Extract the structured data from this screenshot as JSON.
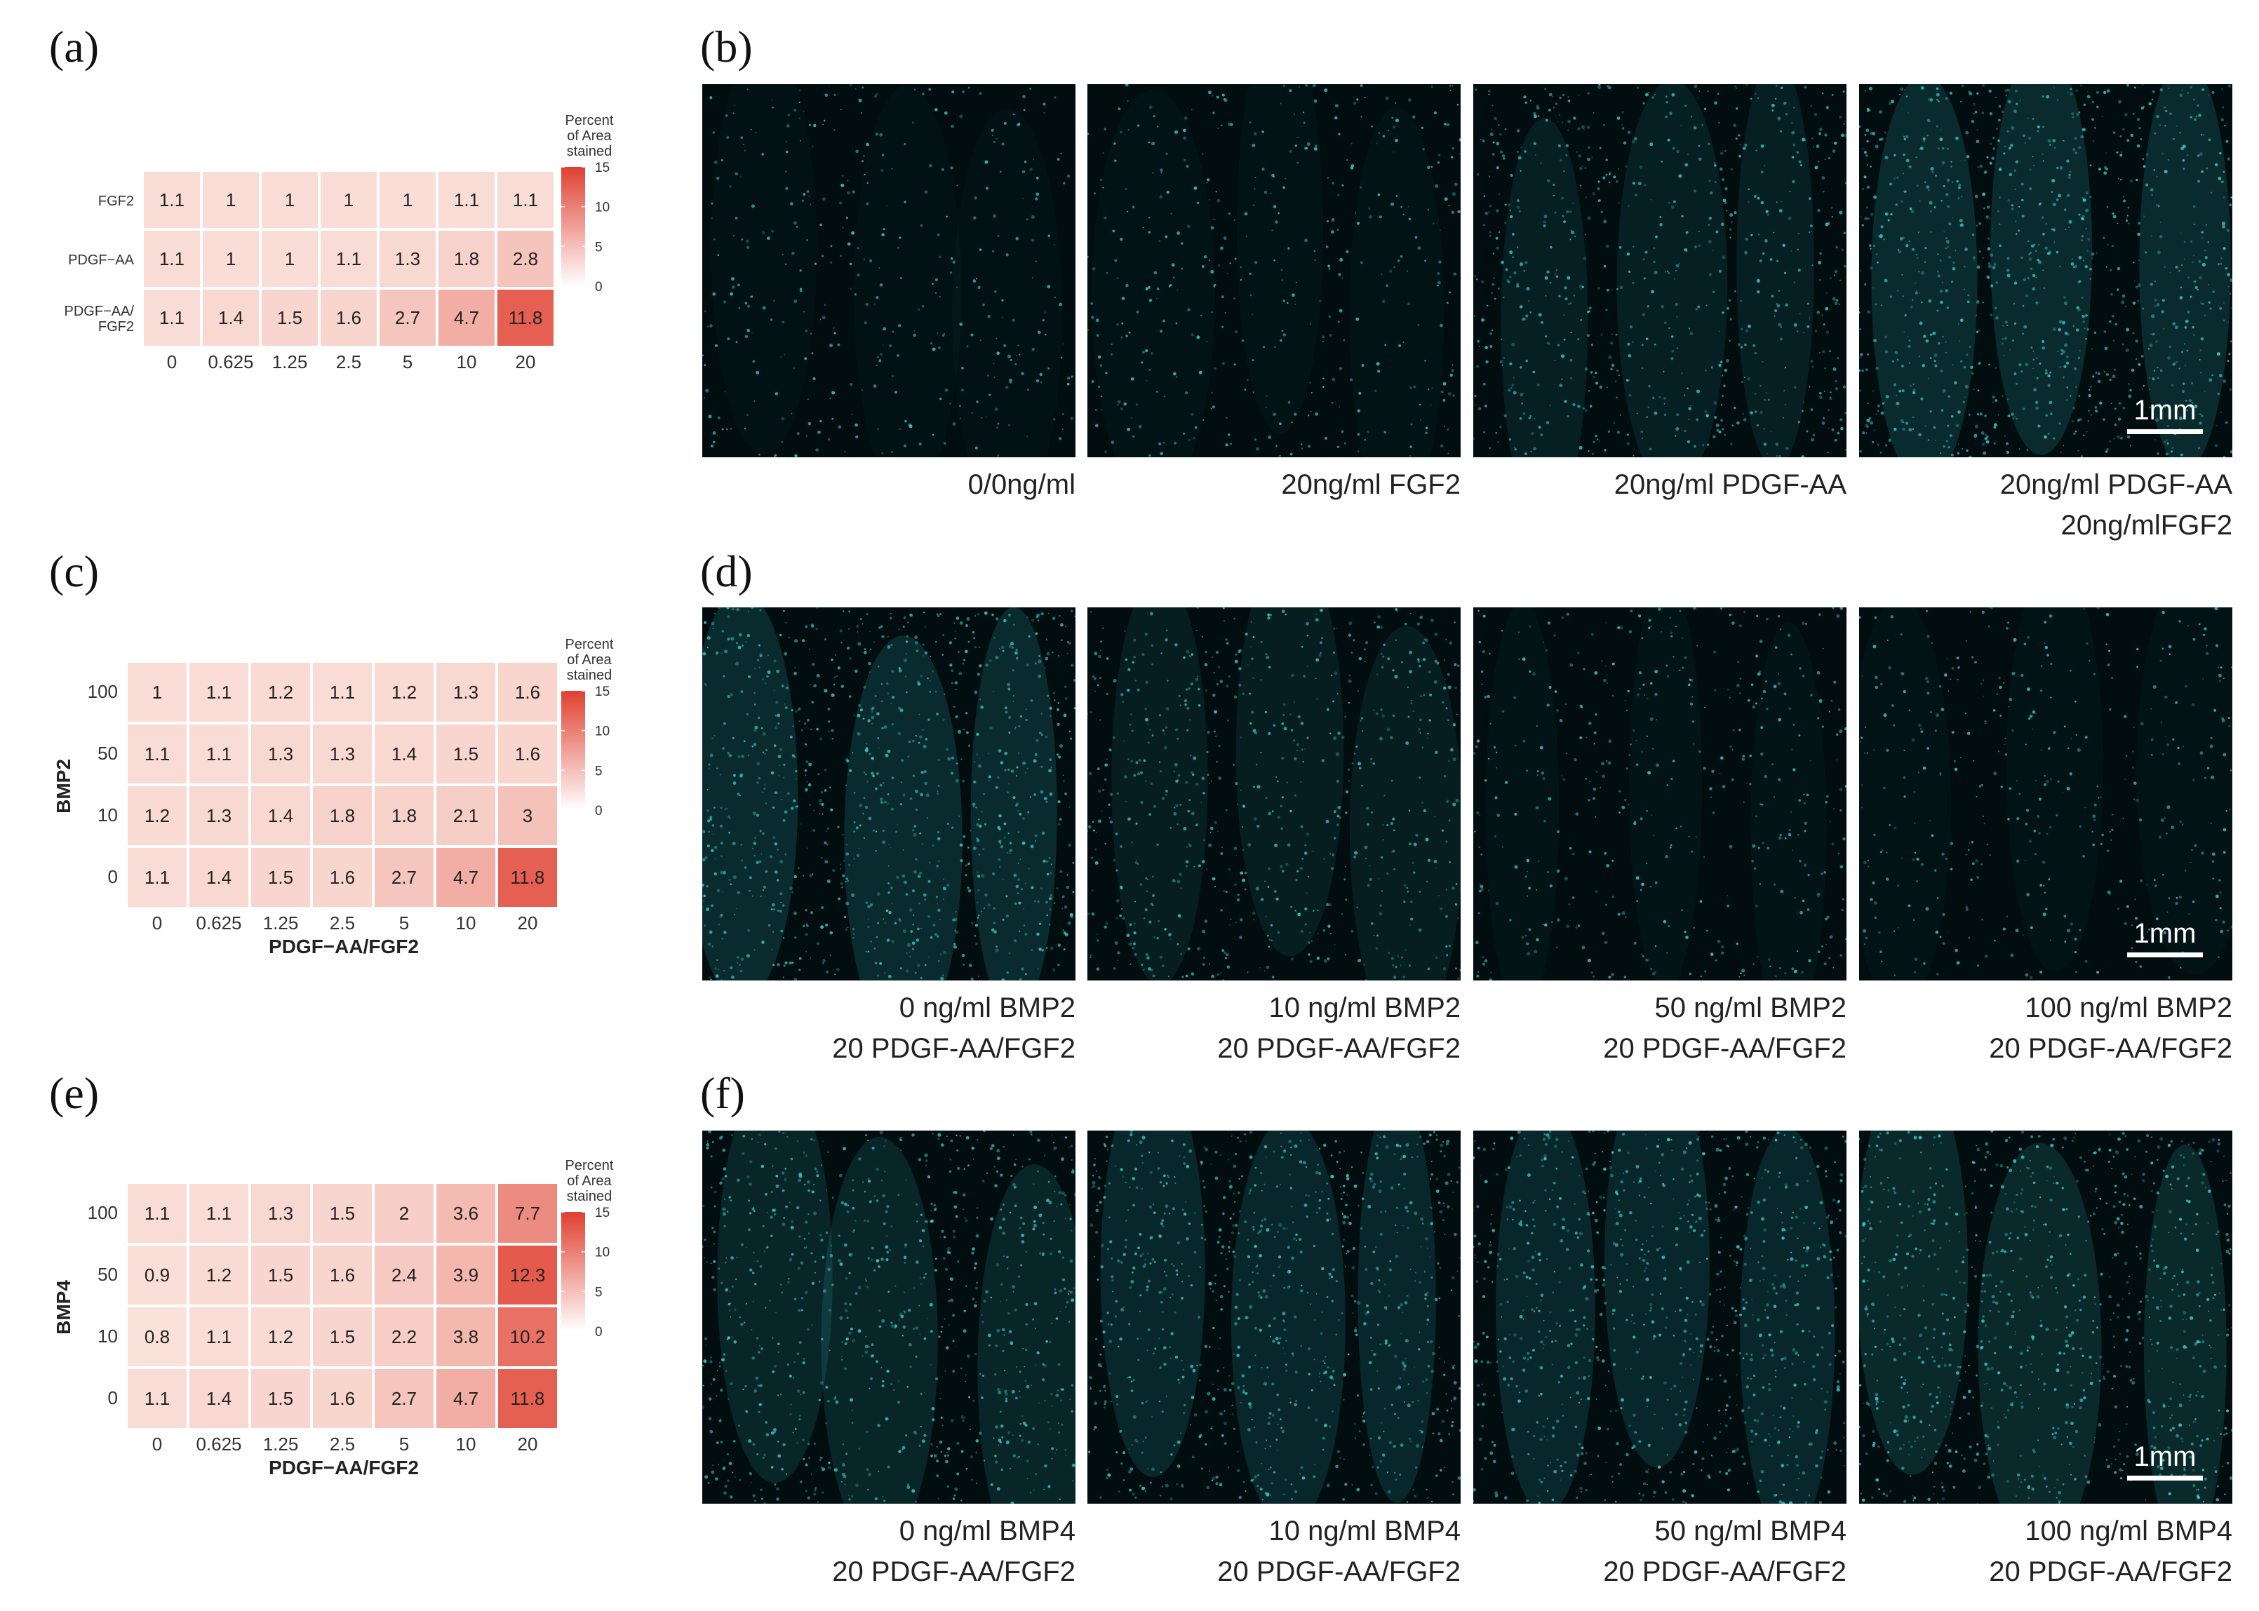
{
  "panels": [
    {
      "letter": "(a)"
    },
    {
      "letter": "(b)"
    },
    {
      "letter": "(c)"
    },
    {
      "letter": "(d)"
    },
    {
      "letter": "(e)"
    },
    {
      "letter": "(f)"
    }
  ],
  "chart_data": [
    {
      "type": "heatmap",
      "panel": "(a)",
      "title": "",
      "xlabel": "",
      "ylabel": "",
      "x": [
        "0",
        "0.625",
        "1.25",
        "2.5",
        "5",
        "10",
        "20"
      ],
      "y": [
        "FGF2",
        "PDGF−AA",
        "PDGF−AA/\nFGF2"
      ],
      "values": [
        [
          1.1,
          1,
          1,
          1,
          1,
          1.1,
          1.1
        ],
        [
          1.1,
          1,
          1,
          1.1,
          1.3,
          1.8,
          2.8
        ],
        [
          1.1,
          1.4,
          1.5,
          1.6,
          2.7,
          4.7,
          11.8
        ]
      ],
      "color_scale": {
        "title": "Percent\nof Area\nstained",
        "min": 0,
        "max": 15,
        "ticks": [
          "15",
          "10",
          "5",
          "0"
        ],
        "low_color": "#ffffff",
        "high_color": "#e04030"
      }
    },
    {
      "type": "heatmap",
      "panel": "(c)",
      "title": "",
      "xlabel": "PDGF−AA/FGF2",
      "ylabel": "BMP2",
      "x": [
        "0",
        "0.625",
        "1.25",
        "2.5",
        "5",
        "10",
        "20"
      ],
      "y": [
        "100",
        "50",
        "10",
        "0"
      ],
      "values": [
        [
          1,
          1.1,
          1.2,
          1.1,
          1.2,
          1.3,
          1.6
        ],
        [
          1.1,
          1.1,
          1.3,
          1.3,
          1.4,
          1.5,
          1.6
        ],
        [
          1.2,
          1.3,
          1.4,
          1.8,
          1.8,
          2.1,
          3
        ],
        [
          1.1,
          1.4,
          1.5,
          1.6,
          2.7,
          4.7,
          11.8
        ]
      ],
      "color_scale": {
        "title": "Percent\nof Area\nstained",
        "min": 0,
        "max": 15,
        "ticks": [
          "15",
          "10",
          "5",
          "0"
        ],
        "low_color": "#ffffff",
        "high_color": "#e04030"
      }
    },
    {
      "type": "heatmap",
      "panel": "(e)",
      "title": "",
      "xlabel": "PDGF−AA/FGF2",
      "ylabel": "BMP4",
      "x": [
        "0",
        "0.625",
        "1.25",
        "2.5",
        "5",
        "10",
        "20"
      ],
      "y": [
        "100",
        "50",
        "10",
        "0"
      ],
      "values": [
        [
          1.1,
          1.1,
          1.3,
          1.5,
          2,
          3.6,
          7.7
        ],
        [
          0.9,
          1.2,
          1.5,
          1.6,
          2.4,
          3.9,
          12.3
        ],
        [
          0.8,
          1.1,
          1.2,
          1.5,
          2.2,
          3.8,
          10.2
        ],
        [
          1.1,
          1.4,
          1.5,
          1.6,
          2.7,
          4.7,
          11.8
        ]
      ],
      "color_scale": {
        "title": "Percent\nof Area\nstained",
        "min": 0,
        "max": 15,
        "ticks": [
          "15",
          "10",
          "5",
          "0"
        ],
        "low_color": "#ffffff",
        "high_color": "#e04030"
      }
    }
  ],
  "micrographs": [
    {
      "panel": "(b)",
      "scale_bar": "1mm",
      "colors": {
        "background": "#010d0f",
        "stain": "#3fd0d8"
      },
      "images": [
        {
          "caption": [
            "0/0ng/ml"
          ],
          "intensity": 0.15
        },
        {
          "caption": [
            "20ng/ml FGF2"
          ],
          "intensity": 0.2
        },
        {
          "caption": [
            "20ng/ml PDGF-AA"
          ],
          "intensity": 0.55
        },
        {
          "caption": [
            "20ng/ml PDGF-AA",
            "20ng/mlFGF2"
          ],
          "intensity": 0.85
        }
      ]
    },
    {
      "panel": "(d)",
      "scale_bar": "1mm",
      "colors": {
        "background": "#010d0f",
        "stain": "#3fd0d8"
      },
      "images": [
        {
          "caption": [
            "0 ng/ml BMP2",
            "20 PDGF-AA/FGF2"
          ],
          "intensity": 0.85
        },
        {
          "caption": [
            "10 ng/ml BMP2",
            "20 PDGF-AA/FGF2"
          ],
          "intensity": 0.5
        },
        {
          "caption": [
            "50 ng/ml BMP2",
            "20 PDGF-AA/FGF2"
          ],
          "intensity": 0.22
        },
        {
          "caption": [
            "100 ng/ml BMP2",
            "20 PDGF-AA/FGF2"
          ],
          "intensity": 0.18
        }
      ]
    },
    {
      "panel": "(f)",
      "scale_bar": "1mm",
      "colors": {
        "background": "#010d0f",
        "stain": "#3fd0d8"
      },
      "images": [
        {
          "caption": [
            "0 ng/ml BMP4",
            "20 PDGF-AA/FGF2"
          ],
          "intensity": 0.7
        },
        {
          "caption": [
            "10 ng/ml BMP4",
            "20 PDGF-AA/FGF2"
          ],
          "intensity": 0.75
        },
        {
          "caption": [
            "50 ng/ml BMP4",
            "20 PDGF-AA/FGF2"
          ],
          "intensity": 0.75
        },
        {
          "caption": [
            "100 ng/ml BMP4",
            "20 PDGF-AA/FGF2"
          ],
          "intensity": 0.8
        }
      ]
    }
  ]
}
